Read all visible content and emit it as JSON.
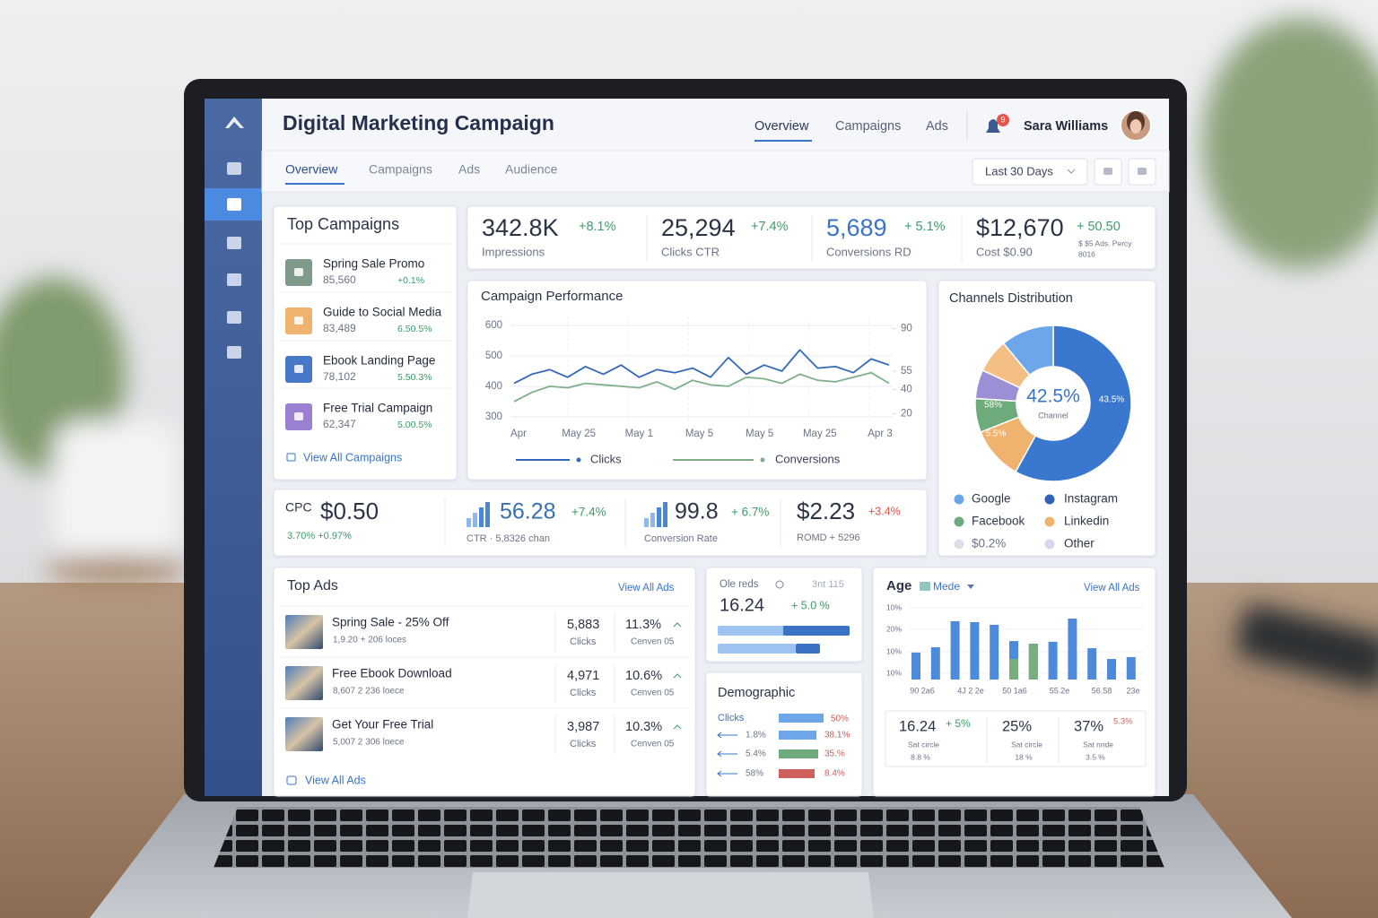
{
  "header": {
    "title": "Digital Marketing Campaign",
    "nav": [
      "Overview",
      "Campaigns",
      "Ads"
    ],
    "notifications": "9",
    "user": "Sara Williams"
  },
  "tabs": [
    "Overview",
    "Campaigns",
    "Ads",
    "Audience"
  ],
  "date_range": "Last 30 Days",
  "kpis": [
    {
      "value": "342.8K",
      "change": "+8.1%",
      "label": "Impressions"
    },
    {
      "value": "25,294",
      "change": "+7.4%",
      "label": "Clicks  CTR"
    },
    {
      "value": "5,689",
      "change": "+ 5.1%",
      "label": "Conversions RD"
    },
    {
      "value": "$12,670",
      "change": "+ 50.50",
      "label": "Cost  $0.90",
      "note": "$ $5 Ads. Percy",
      "note2": "8016"
    }
  ],
  "top_campaigns": {
    "title": "Top Campaigns",
    "items": [
      {
        "name": "Spring Sale Promo",
        "value": "85,560",
        "change": "+0.1%"
      },
      {
        "name": "Guide to Social Media",
        "value": "83,489",
        "change": "6.50.5%"
      },
      {
        "name": "Ebook Landing Page",
        "value": "78,102",
        "change": "5.50.3%"
      },
      {
        "name": "Free Trial Campaign",
        "value": "62,347",
        "change": "5.00.5%"
      }
    ],
    "link": "View All Campaigns"
  },
  "performance": {
    "title": "Campaign Performance",
    "xlabels": [
      "Apr",
      "May 25",
      "May 1",
      "May 5",
      "May 5",
      "May 25",
      "Apr 3"
    ],
    "ylim": [
      270,
      630
    ],
    "yticks": [
      300,
      400,
      500,
      600
    ],
    "y2lim": [
      10,
      100
    ],
    "y2ticks": [
      20,
      40,
      55,
      90
    ],
    "series": [
      {
        "name": "Clicks",
        "color": "#3569b8",
        "values": [
          410,
          440,
          455,
          430,
          465,
          440,
          470,
          430,
          455,
          445,
          460,
          430,
          495,
          440,
          470,
          450,
          520,
          460,
          465,
          445,
          490,
          470
        ]
      },
      {
        "name": "Conversions",
        "color": "#7fb08a",
        "values": [
          350,
          380,
          400,
          395,
          410,
          405,
          400,
          395,
          415,
          390,
          420,
          405,
          400,
          430,
          425,
          410,
          440,
          420,
          415,
          430,
          445,
          410
        ]
      }
    ]
  },
  "channels": {
    "title": "Channels Distribution",
    "center_value": "42.5%",
    "center_label": "Channel",
    "segments": [
      {
        "value": 58,
        "color": "#3a77cf"
      },
      {
        "value": 11,
        "color": "#f0b26f"
      },
      {
        "value": 7,
        "color": "#6daa7c"
      },
      {
        "value": 6,
        "color": "#9d8fd6"
      },
      {
        "value": 7,
        "color": "#f3bf85"
      },
      {
        "value": 11,
        "color": "#6ea6ea"
      }
    ],
    "annotations": [
      "43.5%",
      "58%",
      "5.5%"
    ],
    "legend": [
      {
        "name": "Google",
        "color": "#6ea6ea"
      },
      {
        "name": "Instagram",
        "color": "#2f62b8"
      },
      {
        "name": "Facebook",
        "color": "#6daa7c"
      },
      {
        "name": "Linkedin",
        "color": "#f0b26f"
      },
      {
        "name": "$0.2%",
        "color": "#dcdfe8"
      },
      {
        "name": "Other",
        "color": "#d5d7ee"
      }
    ]
  },
  "metrics": [
    {
      "label": "CPC",
      "value": "$0.50",
      "sub": "3.70%  +0.97%"
    },
    {
      "value": "56.28",
      "change": "+7.4%",
      "sub": "CTR ·  5,8326 chan"
    },
    {
      "value": "99.8",
      "change": "+ 6.7%",
      "sub": "Conversion Rate"
    },
    {
      "value": "$2.23",
      "change": "+3.4%",
      "sub": "ROMD + 5296"
    }
  ],
  "top_ads": {
    "title": "Top Ads",
    "link": "View All Ads",
    "rows": [
      {
        "name": "Spring Sale - 25% Off",
        "sub": "1,9.20  + 206 loces",
        "clicks": "5,883",
        "clicks_label": "Clicks",
        "rate": "11.3%",
        "rate_label": "Cenven 05"
      },
      {
        "name": "Free Ebook Download",
        "sub": "8,607  2 236 loece",
        "clicks": "4,971",
        "clicks_label": "Clicks",
        "rate": "10.6%",
        "rate_label": "Cenven 05"
      },
      {
        "name": "Get Your Free Trial",
        "sub": "5,007  2 306 loece",
        "clicks": "3,987",
        "clicks_label": "Clicks",
        "rate": "10.3%",
        "rate_label": "Cenven 05"
      }
    ],
    "footer": "View All Ads"
  },
  "snapshot": {
    "label": "Ole reds",
    "label2": "3nt 115",
    "value": "16.24",
    "change": "+ 5.0 %"
  },
  "demographic": {
    "title": "Demographic",
    "header": "Clicks",
    "header_value": "50%",
    "rows": [
      {
        "left": "1.8%",
        "right": "38.1%",
        "color": "#6ea6ea"
      },
      {
        "left": "5.4%",
        "right": "35.%",
        "color": "#6daa7c"
      },
      {
        "left": "58%",
        "right": "8.4%",
        "color": "#cf5f5a"
      }
    ]
  },
  "age": {
    "title": "Age",
    "filter": "Mede",
    "link": "View All Ads",
    "axis_labels": [
      "10%",
      "20%",
      "10%",
      "10%"
    ],
    "ylim": [
      0,
      30
    ],
    "bars": [
      11.3,
      13.5,
      24.4,
      24,
      22.9,
      16.1,
      15,
      15.8,
      25.5,
      13.1,
      8.6,
      9.4
    ],
    "highlight": [
      null,
      null,
      null,
      null,
      null,
      8.6,
      15,
      null,
      null,
      null,
      null,
      null
    ],
    "xlabels": [
      "90 2a6",
      "4J 2 2e",
      "50 1a6",
      "55.2e",
      "56.58",
      "23e"
    ],
    "stats": [
      {
        "value": "16.24",
        "change": "+ 5%",
        "sub": "Sat circle",
        "sub2": "8.8 %"
      },
      {
        "value": "25%",
        "change": "",
        "sub": "Sat circle",
        "sub2": "18 %"
      },
      {
        "value": "37%",
        "change": "5.3%",
        "sub": "Sat nnde",
        "sub2": "3.5 %"
      }
    ]
  }
}
